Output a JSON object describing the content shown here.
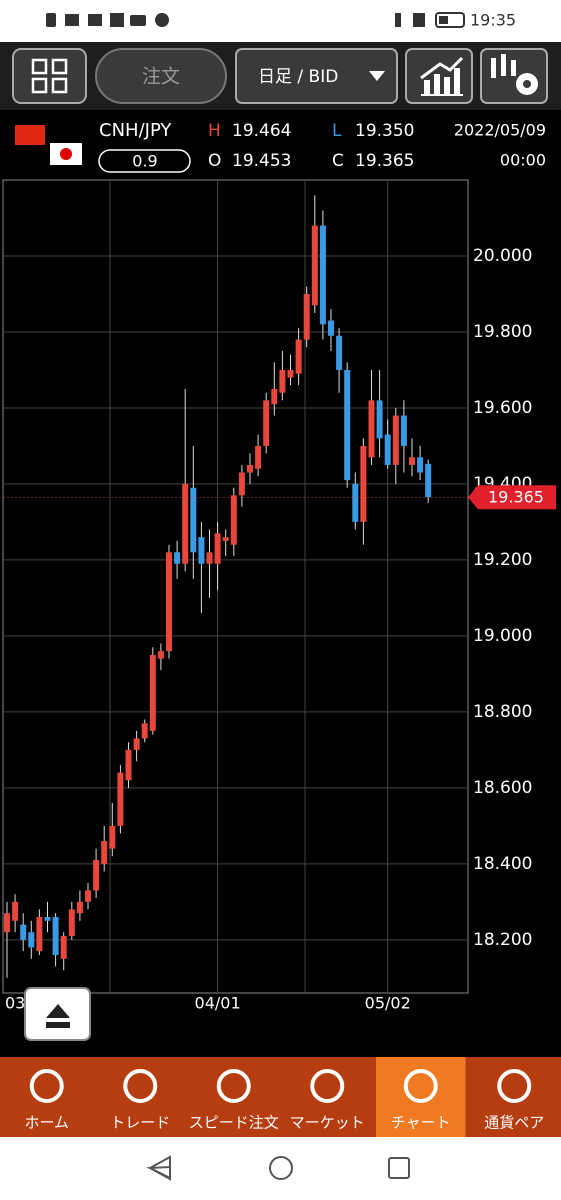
{
  "status_bar": {
    "time": "19:35"
  },
  "toolbar": {
    "order": "注文",
    "timeframe": "日足 / BID"
  },
  "info": {
    "symbol": "CNH/JPY",
    "spread": "0.9",
    "high_label": "H",
    "high": "19.464",
    "open_label": "O",
    "open": "19.453",
    "low_label": "L",
    "low": "19.350",
    "close_label": "C",
    "close": "19.365",
    "date": "2022/05/09",
    "time": "00:00"
  },
  "chart_data": {
    "type": "candlestick",
    "categories": [
      "03",
      null,
      null,
      null,
      null,
      null,
      null,
      null,
      null,
      null,
      null,
      null,
      null,
      null,
      null,
      null,
      null,
      null,
      null,
      null,
      null,
      null,
      null,
      null,
      null,
      null,
      "04/01",
      null,
      null,
      null,
      null,
      null,
      null,
      null,
      null,
      null,
      null,
      null,
      null,
      null,
      null,
      null,
      null,
      null,
      null,
      null,
      null,
      "05/02",
      null,
      null,
      null,
      null,
      null
    ],
    "open": [
      18.22,
      18.25,
      18.24,
      18.22,
      18.17,
      18.26,
      18.26,
      18.15,
      18.21,
      18.27,
      18.3,
      18.33,
      18.4,
      18.44,
      18.5,
      18.62,
      18.7,
      18.73,
      18.75,
      18.94,
      18.96,
      19.22,
      19.19,
      19.39,
      19.26,
      19.19,
      19.19,
      19.25,
      19.24,
      19.37,
      19.43,
      19.44,
      19.5,
      19.61,
      19.64,
      19.68,
      19.69,
      19.78,
      19.87,
      20.08,
      19.83,
      19.79,
      19.7,
      19.4,
      19.3,
      19.47,
      19.62,
      19.53,
      19.45,
      19.58,
      19.45,
      19.47,
      19.453
    ],
    "high": [
      18.3,
      18.32,
      18.27,
      18.25,
      18.28,
      18.3,
      18.27,
      18.22,
      18.3,
      18.33,
      18.35,
      18.44,
      18.5,
      18.56,
      18.66,
      18.72,
      18.75,
      18.78,
      18.97,
      18.98,
      19.24,
      19.25,
      19.65,
      19.5,
      19.3,
      19.28,
      19.3,
      19.28,
      19.39,
      19.45,
      19.48,
      19.53,
      19.64,
      19.72,
      19.75,
      19.74,
      19.81,
      19.92,
      20.16,
      20.12,
      19.86,
      19.81,
      19.72,
      19.43,
      19.52,
      19.7,
      19.7,
      19.57,
      19.6,
      19.62,
      19.52,
      19.5,
      19.464
    ],
    "low": [
      18.1,
      18.22,
      18.17,
      18.15,
      18.16,
      18.22,
      18.13,
      18.12,
      18.2,
      18.25,
      18.28,
      18.31,
      18.38,
      18.42,
      18.48,
      18.6,
      18.67,
      18.72,
      18.74,
      18.91,
      18.94,
      19.15,
      19.17,
      19.15,
      19.06,
      19.1,
      19.12,
      19.21,
      19.21,
      19.34,
      19.4,
      19.42,
      19.48,
      19.58,
      19.62,
      19.66,
      19.66,
      19.76,
      19.85,
      19.78,
      19.75,
      19.64,
      19.39,
      19.28,
      19.24,
      19.45,
      19.47,
      19.44,
      19.4,
      19.43,
      19.42,
      19.41,
      19.35
    ],
    "close": [
      18.27,
      18.3,
      18.2,
      18.18,
      18.26,
      18.25,
      18.16,
      18.21,
      18.28,
      18.3,
      18.33,
      18.41,
      18.46,
      18.5,
      18.64,
      18.7,
      18.73,
      18.77,
      18.95,
      18.96,
      19.22,
      19.19,
      19.4,
      19.22,
      19.19,
      19.22,
      19.27,
      19.26,
      19.37,
      19.43,
      19.45,
      19.5,
      19.62,
      19.65,
      19.7,
      19.7,
      19.78,
      19.9,
      20.08,
      19.82,
      19.79,
      19.7,
      19.41,
      19.3,
      19.5,
      19.62,
      19.52,
      19.45,
      19.58,
      19.5,
      19.47,
      19.43,
      19.365
    ],
    "up_color": "#e8473b",
    "down_color": "#3a9ae6",
    "ylim": [
      18.06,
      20.2
    ],
    "yticks": [
      {
        "value": 18.2,
        "label": "18.200"
      },
      {
        "value": 18.4,
        "label": "18.400"
      },
      {
        "value": 18.6,
        "label": "18.600"
      },
      {
        "value": 18.8,
        "label": "18.800"
      },
      {
        "value": 19.0,
        "label": "19.000"
      },
      {
        "value": 19.2,
        "label": "19.200"
      },
      {
        "value": 19.4,
        "label": "19.400"
      },
      {
        "value": 19.6,
        "label": "19.600"
      },
      {
        "value": 19.8,
        "label": "19.800"
      },
      {
        "value": 20.0,
        "label": "20.000"
      }
    ],
    "grid": true
  },
  "nav": {
    "items": [
      "ホーム",
      "トレード",
      "スピード注文",
      "マーケット",
      "チャート",
      "通貨ペア"
    ],
    "active": 4
  }
}
